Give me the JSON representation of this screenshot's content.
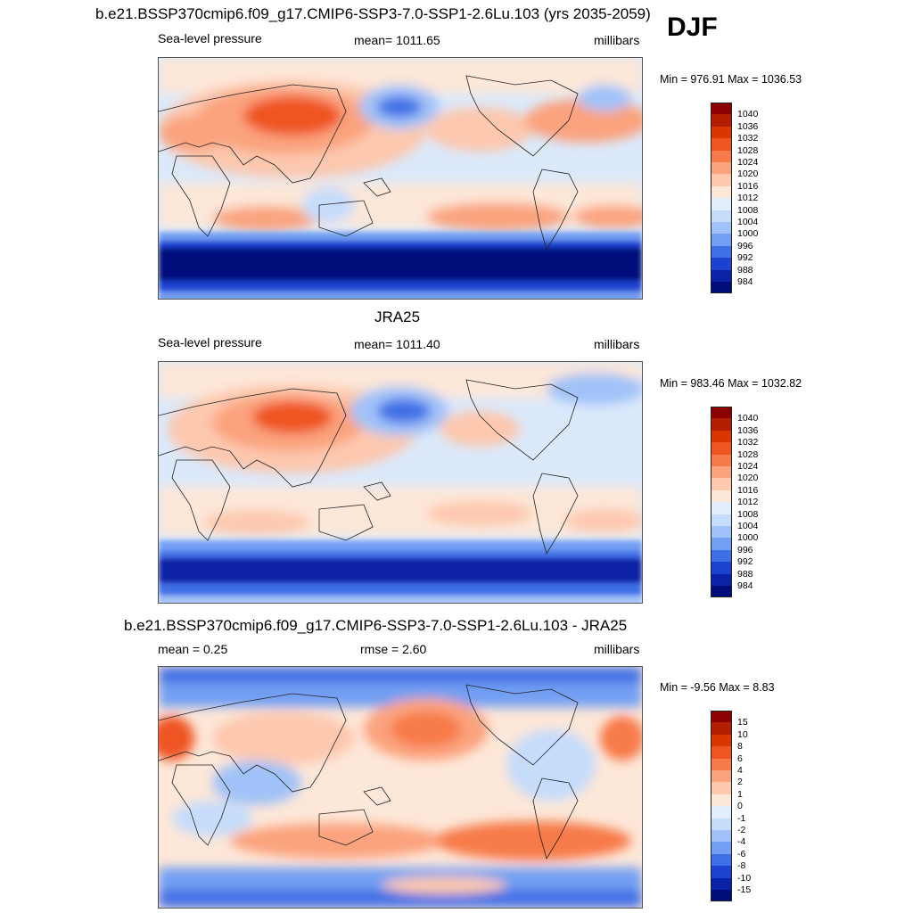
{
  "season": "DJF",
  "panels": [
    {
      "id": "model",
      "title": "b.e21.BSSP370cmip6.f09_g17.CMIP6-SSP3-7.0-SSP1-2.6Lu.103 (yrs 2035-2059)",
      "left_label": "Sea-level pressure",
      "center_label": "mean= 1011.65",
      "right_label": "millibars",
      "minmax": "Min = 976.91 Max = 1036.53"
    },
    {
      "id": "obs",
      "title": "JRA25",
      "left_label": "Sea-level pressure",
      "center_label": "mean= 1011.40",
      "right_label": "millibars",
      "minmax": "Min = 983.46 Max = 1032.82"
    },
    {
      "id": "diff",
      "title": "b.e21.BSSP370cmip6.f09_g17.CMIP6-SSP3-7.0-SSP1-2.6Lu.103 - JRA25",
      "left_label": "mean =   0.25",
      "center_label": "rmse =   2.60",
      "right_label": "millibars",
      "minmax": "Min =  -9.56 Max =   8.83"
    }
  ],
  "colorbar_abs": {
    "labels": [
      "1040",
      "1036",
      "1032",
      "1028",
      "1024",
      "1020",
      "1016",
      "1012",
      "1008",
      "1004",
      "1000",
      "996",
      "992",
      "988",
      "984"
    ],
    "colors": [
      "#8b0000",
      "#b41e00",
      "#d93600",
      "#ef5520",
      "#f77a4a",
      "#fba37e",
      "#fdc8ae",
      "#fde7d8",
      "#e3eefd",
      "#c6dcfb",
      "#a1c2f8",
      "#729ff3",
      "#3f6fe6",
      "#1c43d0",
      "#0a23a6",
      "#000c7a"
    ]
  },
  "colorbar_diff": {
    "labels": [
      "15",
      "10",
      "8",
      "6",
      "4",
      "2",
      "1",
      "0",
      "-1",
      "-2",
      "-4",
      "-6",
      "-8",
      "-10",
      "-15"
    ],
    "colors": [
      "#8b0000",
      "#b41e00",
      "#d93600",
      "#ef5520",
      "#f77a4a",
      "#fba37e",
      "#fdc8ae",
      "#fde7d8",
      "#e3eefd",
      "#c6dcfb",
      "#a1c2f8",
      "#729ff3",
      "#3f6fe6",
      "#1c43d0",
      "#0a23a6",
      "#000c7a"
    ]
  },
  "colors": {
    "frame": "#555555",
    "coast": "#222222"
  }
}
